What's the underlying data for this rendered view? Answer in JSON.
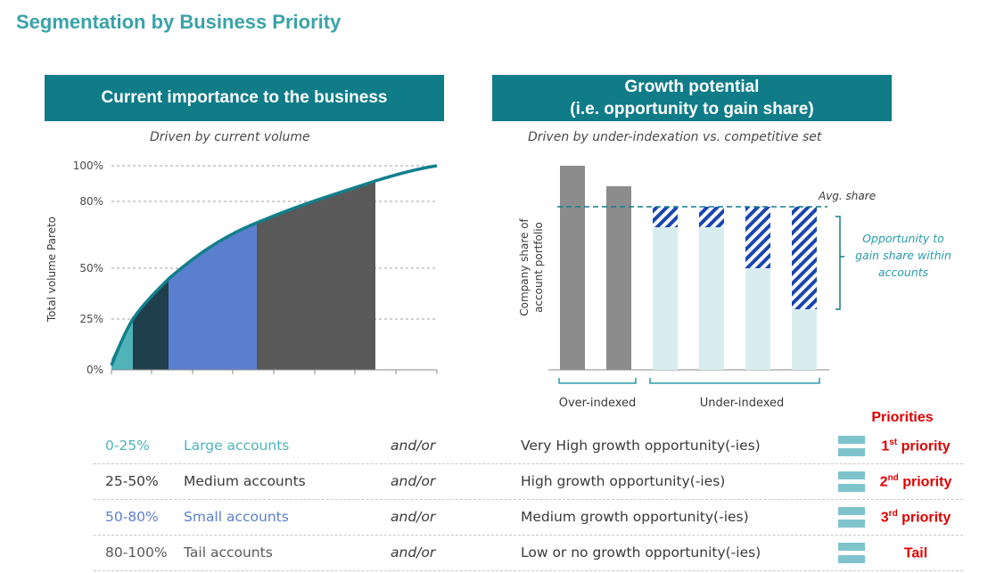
{
  "title": "Segmentation by Business Priority",
  "left_panel": {
    "header": "Current importance to the business",
    "subtitle": "Driven by current volume",
    "y_axis_label": "Total volume Pareto",
    "y_ticks": [
      "100%",
      "80%",
      "50%",
      "25%",
      "0%"
    ]
  },
  "right_panel": {
    "header_line1": "Growth potential",
    "header_line2": "(i.e. opportunity to gain share)",
    "subtitle": "Driven by under-indexation vs. competitive set",
    "y_axis_label_line1": "Company share of",
    "y_axis_label_line2": "account portfolio",
    "avg_share_label": "Avg. share",
    "opportunity_line1": "Opportunity to",
    "opportunity_line2": "gain share within",
    "opportunity_line3": "accounts",
    "group_over": "Over-indexed",
    "group_under": "Under-indexed"
  },
  "chart_data": [
    {
      "type": "area",
      "ylabel": "Total volume Pareto",
      "ylim": [
        0,
        100
      ],
      "y_ticks": [
        "0%",
        "25%",
        "50%",
        "80%",
        "100%"
      ],
      "series": [
        {
          "x_share": [
            0,
            0.06,
            0.18,
            0.45,
            0.82,
            1.0
          ],
          "values": [
            0,
            25,
            50,
            80,
            97,
            100
          ]
        }
      ],
      "segments": [
        {
          "range": "0-25%",
          "color": "#4fb3b8"
        },
        {
          "range": "25-50%",
          "color": "#1f3f4c"
        },
        {
          "range": "50-80%",
          "color": "#5b7fcf"
        },
        {
          "range": "80-100%",
          "color": "#595959"
        }
      ]
    },
    {
      "type": "bar",
      "ylabel": "Company share of account portfolio",
      "average_share": 80,
      "bars": [
        {
          "group": "Over-indexed",
          "value": 100
        },
        {
          "group": "Over-indexed",
          "value": 90
        },
        {
          "group": "Under-indexed",
          "value": 70,
          "gap_to_avg": 10
        },
        {
          "group": "Under-indexed",
          "value": 70,
          "gap_to_avg": 10
        },
        {
          "group": "Under-indexed",
          "value": 50,
          "gap_to_avg": 30
        },
        {
          "group": "Under-indexed",
          "value": 30,
          "gap_to_avg": 50
        }
      ]
    }
  ],
  "priorities_title": "Priorities",
  "rows": [
    {
      "range": "0-25%",
      "account": "Large accounts",
      "andor": "and/or",
      "growth": "Very High growth opportunity(-ies)",
      "priority_num": "1",
      "priority_sup": "st",
      "priority_text": " priority",
      "color": "#4fb3b8"
    },
    {
      "range": "25-50%",
      "account": "Medium accounts",
      "andor": "and/or",
      "growth": "High growth opportunity(-ies)",
      "priority_num": "2",
      "priority_sup": "nd",
      "priority_text": " priority",
      "color": "#3a3a3a"
    },
    {
      "range": "50-80%",
      "account": "Small accounts",
      "andor": "and/or",
      "growth": "Medium growth opportunity(-ies)",
      "priority_num": "3",
      "priority_sup": "rd",
      "priority_text": " priority",
      "color": "#5b7fcf"
    },
    {
      "range": "80-100%",
      "account": "Tail accounts",
      "andor": "and/or",
      "growth": "Low or no growth opportunity(-ies)",
      "priority_num": "",
      "priority_sup": "",
      "priority_text": "Tail",
      "color": "#595959"
    }
  ]
}
